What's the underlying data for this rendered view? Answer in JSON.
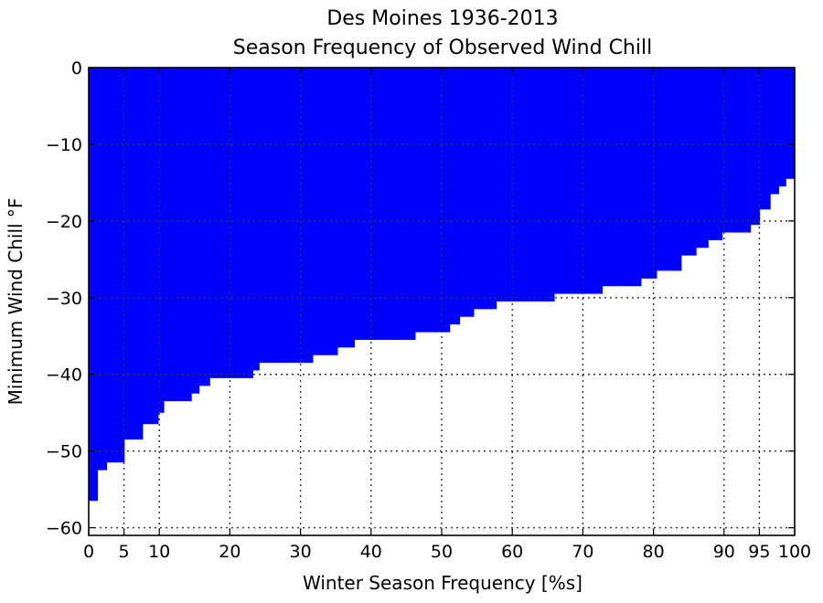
{
  "chart_data": {
    "type": "area",
    "title": "Des Moines 1936-2013",
    "subtitle": "Season Frequency of Observed Wind Chill",
    "xlabel": "Winter Season Frequency [%s]",
    "ylabel": "Minimum Wind Chill °F",
    "xlim": [
      0,
      100
    ],
    "ylim": [
      -61,
      0
    ],
    "xticks": [
      0,
      5,
      10,
      20,
      30,
      40,
      50,
      60,
      70,
      80,
      90,
      95,
      100
    ],
    "yticks": [
      0,
      -10,
      -20,
      -30,
      -40,
      -50,
      -60
    ],
    "grid": true,
    "color": "#0000ff",
    "series": [
      {
        "x": [
          1.3,
          1.3,
          2.6,
          5.1,
          7.7,
          9.9,
          10.7,
          14.6,
          15.7,
          17.2,
          23.3,
          24.2,
          31.8,
          35.3,
          37.7,
          46.3,
          51.2,
          52.6,
          54.6,
          57.8,
          66.0,
          72.8,
          78.3,
          80.5,
          84.0,
          84.3,
          86.1,
          87.8,
          89.8,
          93.8,
          95.1,
          96.6,
          97.8,
          98.8
        ],
        "y": [
          -56.5,
          -52.5,
          -51.5,
          -48.5,
          -46.5,
          -45,
          -43.5,
          -42.5,
          -41.5,
          -40.5,
          -39.5,
          -38.5,
          -37.5,
          -36.5,
          -35.5,
          -34.5,
          -33.5,
          -32.5,
          -31.5,
          -30.5,
          -29.5,
          -28.5,
          -27.5,
          -26.5,
          -24.5,
          -24.5,
          -23.5,
          -22.5,
          -21.5,
          -20.5,
          -18.5,
          -16.5,
          -15.5,
          -14.5
        ]
      }
    ]
  }
}
